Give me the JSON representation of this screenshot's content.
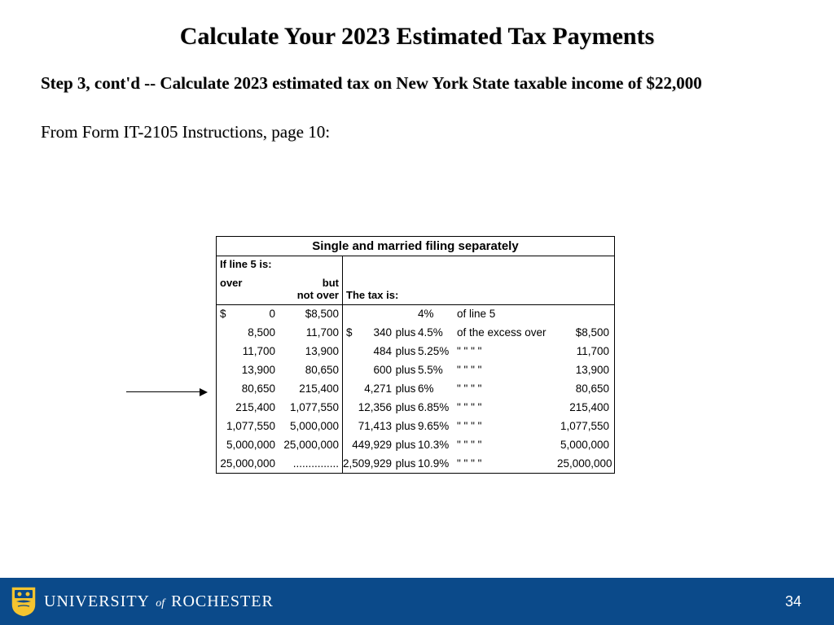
{
  "title": "Calculate Your 2023 Estimated Tax Payments",
  "step_text": "Step 3, cont'd --  Calculate 2023 estimated tax on New York State taxable income of $22,000",
  "source_text": "From Form IT-2105 Instructions, page 10:",
  "table": {
    "title": "Single and married filing separately",
    "hdr_line5": "If line 5 is:",
    "hdr_over": "over",
    "hdr_but": "but",
    "hdr_notover": "not over",
    "hdr_taxis": "The tax is:",
    "rows": [
      {
        "over": "0",
        "notover": "$8,500",
        "base": "",
        "plus": "",
        "rate": "4%",
        "desc": "of line 5",
        "excess": ""
      },
      {
        "over": "8,500",
        "notover": "11,700",
        "base": "340",
        "plus": "plus",
        "rate": "4.5%",
        "desc": "of the excess over",
        "excess": "$8,500"
      },
      {
        "over": "11,700",
        "notover": "13,900",
        "base": "484",
        "plus": "plus",
        "rate": "5.25%",
        "desc": "\"   \"   \"   \"",
        "excess": "11,700"
      },
      {
        "over": "13,900",
        "notover": "80,650",
        "base": "600",
        "plus": "plus",
        "rate": "5.5%",
        "desc": "\"   \"   \"   \"",
        "excess": "13,900"
      },
      {
        "over": "80,650",
        "notover": "215,400",
        "base": "4,271",
        "plus": "plus",
        "rate": "6%",
        "desc": "\"   \"   \"   \"",
        "excess": "80,650"
      },
      {
        "over": "215,400",
        "notover": "1,077,550",
        "base": "12,356",
        "plus": "plus",
        "rate": "6.85%",
        "desc": "\"   \"   \"   \"",
        "excess": "215,400"
      },
      {
        "over": "1,077,550",
        "notover": "5,000,000",
        "base": "71,413",
        "plus": "plus",
        "rate": "9.65%",
        "desc": "\"   \"   \"   \"",
        "excess": "1,077,550"
      },
      {
        "over": "5,000,000",
        "notover": "25,000,000",
        "base": "449,929",
        "plus": "plus",
        "rate": "10.3%",
        "desc": "\"   \"   \"   \"",
        "excess": "5,000,000"
      },
      {
        "over": "25,000,000",
        "notover": "...............",
        "base": "2,509,929",
        "plus": "plus",
        "rate": "10.9%",
        "desc": "\"   \"   \"   \"",
        "excess": "25,000,000"
      }
    ]
  },
  "footer": {
    "university": "UNIVERSITY",
    "of": "of",
    "rochester": "ROCHESTER",
    "page": "34",
    "bg_color": "#0b4a8a",
    "shield_gold": "#f4c430",
    "shield_blue": "#0b4a8a"
  }
}
